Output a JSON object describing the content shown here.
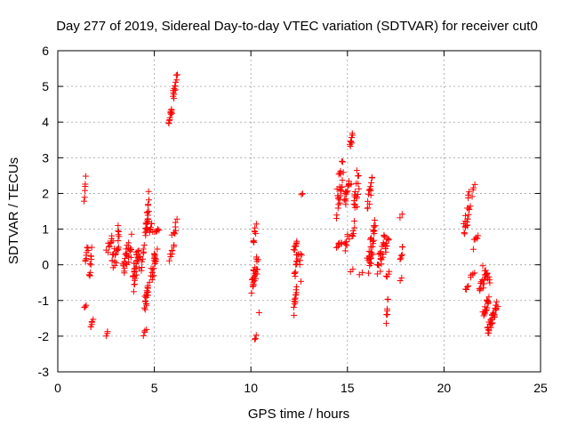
{
  "chart_data": {
    "type": "scatter",
    "title": "Day 277 of 2019, Sidereal Day-to-day VTEC variation (SDTVAR) for receiver cut0",
    "xlabel": "GPS time / hours",
    "ylabel": "SDTVAR / TECUs",
    "xlim": [
      0,
      25
    ],
    "ylim": [
      -3,
      6
    ],
    "xticks": [
      0,
      5,
      10,
      15,
      20,
      25
    ],
    "yticks": [
      -3,
      -2,
      -1,
      0,
      1,
      2,
      3,
      4,
      5,
      6
    ],
    "grid": true,
    "marker": "+",
    "marker_color": "#ff0000",
    "series_segments": [
      {
        "x0": 1.35,
        "x1": 1.45,
        "y0": 1.7,
        "y1": 2.5,
        "n": 6
      },
      {
        "x0": 1.35,
        "x1": 1.5,
        "y0": -1.25,
        "y1": -1.1,
        "n": 3
      },
      {
        "x0": 1.4,
        "x1": 1.6,
        "y0": 0.0,
        "y1": 0.6,
        "n": 8
      },
      {
        "x0": 1.6,
        "x1": 1.8,
        "y0": -0.6,
        "y1": 0.5,
        "n": 10
      },
      {
        "x0": 1.65,
        "x1": 1.85,
        "y0": -1.8,
        "y1": -1.5,
        "n": 6
      },
      {
        "x0": 2.5,
        "x1": 2.6,
        "y0": -2.0,
        "y1": -1.8,
        "n": 3
      },
      {
        "x0": 2.5,
        "x1": 2.9,
        "y0": 0.3,
        "y1": 0.9,
        "n": 10
      },
      {
        "x0": 2.7,
        "x1": 3.3,
        "y0": -0.3,
        "y1": 1.1,
        "n": 22
      },
      {
        "x0": 3.3,
        "x1": 3.9,
        "y0": -0.4,
        "y1": 0.9,
        "n": 26
      },
      {
        "x0": 3.8,
        "x1": 4.3,
        "y0": -0.8,
        "y1": 0.6,
        "n": 30
      },
      {
        "x0": 4.3,
        "x1": 4.5,
        "y0": -0.3,
        "y1": 0.7,
        "n": 8
      },
      {
        "x0": 4.5,
        "x1": 4.75,
        "y0": 0.6,
        "y1": 2.1,
        "n": 22
      },
      {
        "x0": 4.45,
        "x1": 4.75,
        "y0": -1.4,
        "y1": -0.4,
        "n": 18
      },
      {
        "x0": 4.4,
        "x1": 4.6,
        "y0": -2.0,
        "y1": -1.8,
        "n": 4
      },
      {
        "x0": 4.7,
        "x1": 4.9,
        "y0": 0.9,
        "y1": 1.2,
        "n": 6
      },
      {
        "x0": 4.75,
        "x1": 5.2,
        "y0": -0.5,
        "y1": 0.5,
        "n": 22
      },
      {
        "x0": 4.9,
        "x1": 5.3,
        "y0": 0.9,
        "y1": 1.0,
        "n": 6
      },
      {
        "x0": 5.7,
        "x1": 5.95,
        "y0": 3.9,
        "y1": 4.5,
        "n": 12
      },
      {
        "x0": 5.9,
        "x1": 6.2,
        "y0": 4.5,
        "y1": 5.45,
        "n": 14
      },
      {
        "x0": 5.75,
        "x1": 6.05,
        "y0": 0.1,
        "y1": 0.6,
        "n": 8
      },
      {
        "x0": 5.9,
        "x1": 6.2,
        "y0": 0.7,
        "y1": 1.3,
        "n": 8
      },
      {
        "x0": 10.1,
        "x1": 10.3,
        "y0": 0.5,
        "y1": 1.15,
        "n": 8
      },
      {
        "x0": 10.0,
        "x1": 10.4,
        "y0": -0.9,
        "y1": 0.3,
        "n": 24
      },
      {
        "x0": 10.2,
        "x1": 10.3,
        "y0": -2.15,
        "y1": -1.95,
        "n": 3
      },
      {
        "x0": 10.4,
        "x1": 10.45,
        "y0": -1.4,
        "y1": -1.3,
        "n": 1
      },
      {
        "x0": 12.2,
        "x1": 12.4,
        "y0": 0.3,
        "y1": 0.85,
        "n": 8
      },
      {
        "x0": 12.2,
        "x1": 12.5,
        "y0": -0.4,
        "y1": 0.5,
        "n": 12
      },
      {
        "x0": 12.2,
        "x1": 12.4,
        "y0": -1.45,
        "y1": -0.6,
        "n": 12
      },
      {
        "x0": 12.5,
        "x1": 12.65,
        "y0": 0.0,
        "y1": 0.4,
        "n": 4
      },
      {
        "x0": 12.55,
        "x1": 12.65,
        "y0": -0.5,
        "y1": -0.4,
        "n": 1
      },
      {
        "x0": 12.6,
        "x1": 12.7,
        "y0": 1.95,
        "y1": 2.0,
        "n": 2
      },
      {
        "x0": 14.4,
        "x1": 14.8,
        "y0": 1.2,
        "y1": 3.1,
        "n": 26
      },
      {
        "x0": 14.4,
        "x1": 14.8,
        "y0": 0.4,
        "y1": 0.7,
        "n": 8
      },
      {
        "x0": 14.8,
        "x1": 15.2,
        "y0": 1.6,
        "y1": 2.6,
        "n": 16
      },
      {
        "x0": 14.8,
        "x1": 15.1,
        "y0": 0.3,
        "y1": 0.9,
        "n": 8
      },
      {
        "x0": 15.1,
        "x1": 15.3,
        "y0": 3.2,
        "y1": 3.8,
        "n": 8
      },
      {
        "x0": 15.2,
        "x1": 15.6,
        "y0": 0.6,
        "y1": 2.9,
        "n": 24
      },
      {
        "x0": 15.15,
        "x1": 15.3,
        "y0": -0.25,
        "y1": -0.1,
        "n": 2
      },
      {
        "x0": 15.6,
        "x1": 15.8,
        "y0": -0.3,
        "y1": -0.2,
        "n": 2
      },
      {
        "x0": 16.0,
        "x1": 16.3,
        "y0": 1.5,
        "y1": 2.5,
        "n": 14
      },
      {
        "x0": 16.0,
        "x1": 16.5,
        "y0": -0.5,
        "y1": 1.3,
        "n": 34
      },
      {
        "x0": 16.5,
        "x1": 17.0,
        "y0": -0.4,
        "y1": 1.0,
        "n": 24
      },
      {
        "x0": 16.9,
        "x1": 17.2,
        "y0": 0.3,
        "y1": 0.9,
        "n": 8
      },
      {
        "x0": 17.0,
        "x1": 17.1,
        "y0": -1.7,
        "y1": -0.9,
        "n": 8
      },
      {
        "x0": 17.0,
        "x1": 17.2,
        "y0": -0.4,
        "y1": -0.1,
        "n": 4
      },
      {
        "x0": 17.7,
        "x1": 17.85,
        "y0": 1.3,
        "y1": 1.45,
        "n": 2
      },
      {
        "x0": 17.7,
        "x1": 17.9,
        "y0": 0.1,
        "y1": 0.6,
        "n": 6
      },
      {
        "x0": 17.7,
        "x1": 17.85,
        "y0": -0.5,
        "y1": -0.35,
        "n": 2
      },
      {
        "x0": 21.0,
        "x1": 21.4,
        "y0": 0.7,
        "y1": 2.1,
        "n": 20
      },
      {
        "x0": 21.4,
        "x1": 21.6,
        "y0": 1.9,
        "y1": 2.3,
        "n": 4
      },
      {
        "x0": 21.1,
        "x1": 21.3,
        "y0": -0.8,
        "y1": -0.5,
        "n": 4
      },
      {
        "x0": 21.3,
        "x1": 21.6,
        "y0": -0.4,
        "y1": -0.2,
        "n": 4
      },
      {
        "x0": 21.5,
        "x1": 21.8,
        "y0": 0.4,
        "y1": 1.0,
        "n": 6
      },
      {
        "x0": 21.8,
        "x1": 22.2,
        "y0": -0.9,
        "y1": -0.2,
        "n": 14
      },
      {
        "x0": 22.0,
        "x1": 22.4,
        "y0": 0.0,
        "y1": -0.6,
        "n": 12
      },
      {
        "x0": 22.0,
        "x1": 22.4,
        "y0": -1.5,
        "y1": -0.8,
        "n": 16
      },
      {
        "x0": 22.2,
        "x1": 22.6,
        "y0": -2.0,
        "y1": -1.3,
        "n": 18
      },
      {
        "x0": 22.5,
        "x1": 22.8,
        "y0": -1.6,
        "y1": -1.0,
        "n": 12
      }
    ]
  }
}
